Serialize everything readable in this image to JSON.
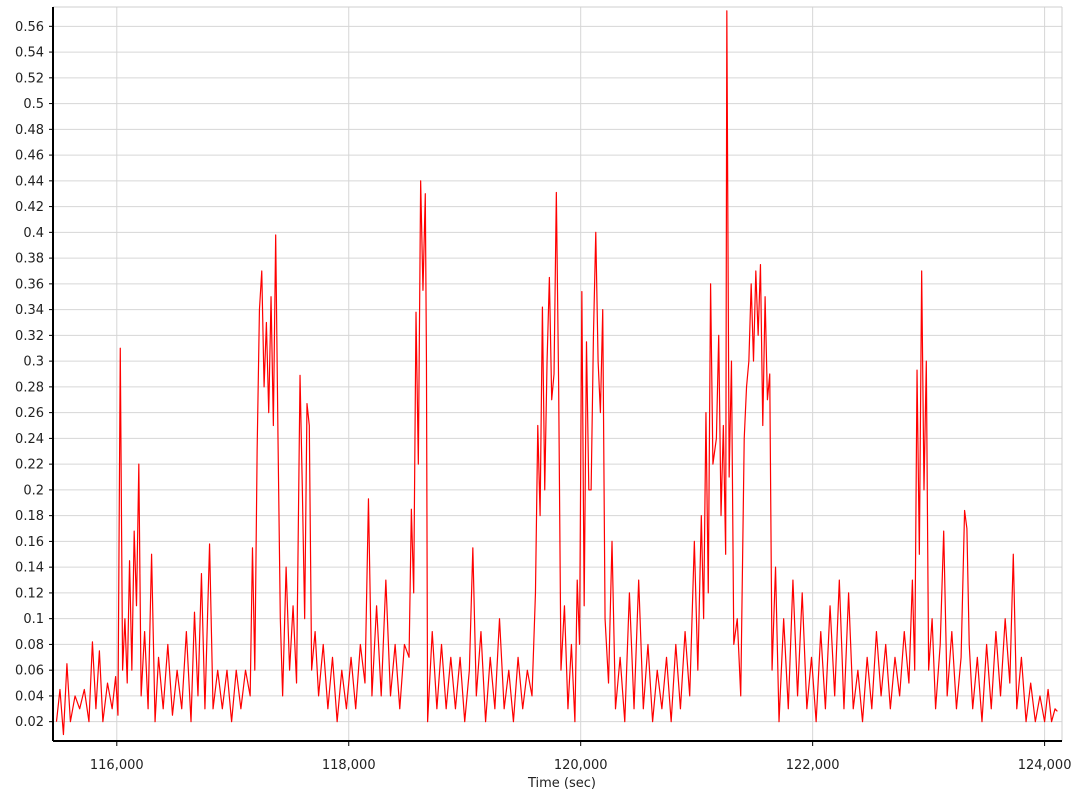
{
  "chart_data": {
    "type": "line",
    "title": "",
    "xlabel": "Time (sec)",
    "ylabel": "",
    "xlim": [
      115450,
      124150
    ],
    "ylim": [
      0.005,
      0.575
    ],
    "grid": true,
    "legend": "none",
    "x_ticks": [
      116000,
      118000,
      120000,
      122000,
      124000
    ],
    "x_tick_labels": [
      "116,000",
      "118,000",
      "120,000",
      "122,000",
      "124,000"
    ],
    "y_ticks": [
      0.02,
      0.04,
      0.06,
      0.08,
      0.1,
      0.12,
      0.14,
      0.16,
      0.18,
      0.2,
      0.22,
      0.24,
      0.26,
      0.28,
      0.3,
      0.32,
      0.34,
      0.36,
      0.38,
      0.4,
      0.42,
      0.44,
      0.46,
      0.48,
      0.5,
      0.52,
      0.54,
      0.56
    ],
    "y_tick_labels": [
      "0.02",
      "0.04",
      "0.06",
      "0.08",
      "0.1",
      "0.12",
      "0.14",
      "0.16",
      "0.18",
      "0.2",
      "0.22",
      "0.24",
      "0.26",
      "0.28",
      "0.3",
      "0.32",
      "0.34",
      "0.36",
      "0.38",
      "0.4",
      "0.42",
      "0.44",
      "0.46",
      "0.48",
      "0.5",
      "0.52",
      "0.54",
      "0.56"
    ],
    "series": [
      {
        "color": "#ff0000",
        "points": [
          [
            115480,
            0.02
          ],
          [
            115510,
            0.045
          ],
          [
            115540,
            0.01
          ],
          [
            115570,
            0.065
          ],
          [
            115600,
            0.02
          ],
          [
            115640,
            0.04
          ],
          [
            115680,
            0.03
          ],
          [
            115720,
            0.045
          ],
          [
            115760,
            0.02
          ],
          [
            115790,
            0.082
          ],
          [
            115820,
            0.03
          ],
          [
            115850,
            0.075
          ],
          [
            115880,
            0.02
          ],
          [
            115920,
            0.05
          ],
          [
            115960,
            0.03
          ],
          [
            115990,
            0.055
          ],
          [
            116010,
            0.025
          ],
          [
            116030,
            0.31
          ],
          [
            116050,
            0.06
          ],
          [
            116070,
            0.1
          ],
          [
            116090,
            0.05
          ],
          [
            116110,
            0.145
          ],
          [
            116130,
            0.06
          ],
          [
            116150,
            0.168
          ],
          [
            116170,
            0.11
          ],
          [
            116190,
            0.22
          ],
          [
            116210,
            0.04
          ],
          [
            116240,
            0.09
          ],
          [
            116270,
            0.03
          ],
          [
            116300,
            0.15
          ],
          [
            116330,
            0.02
          ],
          [
            116360,
            0.07
          ],
          [
            116400,
            0.03
          ],
          [
            116440,
            0.08
          ],
          [
            116480,
            0.025
          ],
          [
            116520,
            0.06
          ],
          [
            116560,
            0.03
          ],
          [
            116600,
            0.09
          ],
          [
            116640,
            0.02
          ],
          [
            116670,
            0.105
          ],
          [
            116700,
            0.04
          ],
          [
            116730,
            0.135
          ],
          [
            116760,
            0.03
          ],
          [
            116800,
            0.158
          ],
          [
            116830,
            0.03
          ],
          [
            116870,
            0.06
          ],
          [
            116910,
            0.03
          ],
          [
            116950,
            0.06
          ],
          [
            116990,
            0.02
          ],
          [
            117030,
            0.06
          ],
          [
            117070,
            0.03
          ],
          [
            117110,
            0.06
          ],
          [
            117150,
            0.04
          ],
          [
            117170,
            0.155
          ],
          [
            117190,
            0.06
          ],
          [
            117210,
            0.23
          ],
          [
            117230,
            0.34
          ],
          [
            117250,
            0.37
          ],
          [
            117270,
            0.28
          ],
          [
            117290,
            0.33
          ],
          [
            117310,
            0.26
          ],
          [
            117330,
            0.35
          ],
          [
            117350,
            0.25
          ],
          [
            117370,
            0.398
          ],
          [
            117390,
            0.24
          ],
          [
            117410,
            0.1
          ],
          [
            117430,
            0.04
          ],
          [
            117460,
            0.14
          ],
          [
            117490,
            0.06
          ],
          [
            117520,
            0.11
          ],
          [
            117550,
            0.05
          ],
          [
            117580,
            0.289
          ],
          [
            117600,
            0.2
          ],
          [
            117620,
            0.1
          ],
          [
            117640,
            0.267
          ],
          [
            117660,
            0.25
          ],
          [
            117680,
            0.06
          ],
          [
            117710,
            0.09
          ],
          [
            117740,
            0.04
          ],
          [
            117780,
            0.08
          ],
          [
            117820,
            0.03
          ],
          [
            117860,
            0.07
          ],
          [
            117900,
            0.02
          ],
          [
            117940,
            0.06
          ],
          [
            117980,
            0.03
          ],
          [
            118020,
            0.07
          ],
          [
            118060,
            0.03
          ],
          [
            118100,
            0.08
          ],
          [
            118140,
            0.05
          ],
          [
            118170,
            0.193
          ],
          [
            118200,
            0.04
          ],
          [
            118240,
            0.11
          ],
          [
            118280,
            0.04
          ],
          [
            118320,
            0.13
          ],
          [
            118360,
            0.04
          ],
          [
            118400,
            0.08
          ],
          [
            118440,
            0.03
          ],
          [
            118480,
            0.08
          ],
          [
            118520,
            0.07
          ],
          [
            118540,
            0.185
          ],
          [
            118560,
            0.12
          ],
          [
            118580,
            0.338
          ],
          [
            118600,
            0.22
          ],
          [
            118620,
            0.44
          ],
          [
            118640,
            0.355
          ],
          [
            118660,
            0.43
          ],
          [
            118670,
            0.3
          ],
          [
            118680,
            0.02
          ],
          [
            118720,
            0.09
          ],
          [
            118760,
            0.03
          ],
          [
            118800,
            0.08
          ],
          [
            118840,
            0.03
          ],
          [
            118880,
            0.07
          ],
          [
            118920,
            0.03
          ],
          [
            118960,
            0.07
          ],
          [
            119000,
            0.02
          ],
          [
            119040,
            0.06
          ],
          [
            119070,
            0.155
          ],
          [
            119100,
            0.04
          ],
          [
            119140,
            0.09
          ],
          [
            119180,
            0.02
          ],
          [
            119220,
            0.07
          ],
          [
            119260,
            0.03
          ],
          [
            119300,
            0.1
          ],
          [
            119340,
            0.03
          ],
          [
            119380,
            0.06
          ],
          [
            119420,
            0.02
          ],
          [
            119460,
            0.07
          ],
          [
            119500,
            0.03
          ],
          [
            119540,
            0.06
          ],
          [
            119580,
            0.04
          ],
          [
            119610,
            0.12
          ],
          [
            119630,
            0.25
          ],
          [
            119650,
            0.18
          ],
          [
            119670,
            0.342
          ],
          [
            119690,
            0.2
          ],
          [
            119710,
            0.3
          ],
          [
            119730,
            0.365
          ],
          [
            119750,
            0.27
          ],
          [
            119770,
            0.29
          ],
          [
            119790,
            0.431
          ],
          [
            119810,
            0.28
          ],
          [
            119830,
            0.06
          ],
          [
            119860,
            0.11
          ],
          [
            119890,
            0.03
          ],
          [
            119920,
            0.08
          ],
          [
            119950,
            0.02
          ],
          [
            119970,
            0.13
          ],
          [
            119990,
            0.08
          ],
          [
            120010,
            0.354
          ],
          [
            120030,
            0.11
          ],
          [
            120050,
            0.315
          ],
          [
            120070,
            0.2
          ],
          [
            120090,
            0.2
          ],
          [
            120110,
            0.32
          ],
          [
            120130,
            0.4
          ],
          [
            120150,
            0.3
          ],
          [
            120170,
            0.26
          ],
          [
            120190,
            0.34
          ],
          [
            120210,
            0.1
          ],
          [
            120240,
            0.05
          ],
          [
            120270,
            0.16
          ],
          [
            120300,
            0.03
          ],
          [
            120340,
            0.07
          ],
          [
            120380,
            0.02
          ],
          [
            120420,
            0.12
          ],
          [
            120460,
            0.03
          ],
          [
            120500,
            0.13
          ],
          [
            120540,
            0.03
          ],
          [
            120580,
            0.08
          ],
          [
            120620,
            0.02
          ],
          [
            120660,
            0.06
          ],
          [
            120700,
            0.03
          ],
          [
            120740,
            0.07
          ],
          [
            120780,
            0.02
          ],
          [
            120820,
            0.08
          ],
          [
            120860,
            0.03
          ],
          [
            120900,
            0.09
          ],
          [
            120940,
            0.04
          ],
          [
            120980,
            0.16
          ],
          [
            121010,
            0.06
          ],
          [
            121040,
            0.18
          ],
          [
            121060,
            0.1
          ],
          [
            121080,
            0.26
          ],
          [
            121100,
            0.12
          ],
          [
            121120,
            0.36
          ],
          [
            121140,
            0.22
          ],
          [
            121170,
            0.24
          ],
          [
            121190,
            0.32
          ],
          [
            121210,
            0.18
          ],
          [
            121230,
            0.25
          ],
          [
            121250,
            0.15
          ],
          [
            121260,
            0.572
          ],
          [
            121280,
            0.21
          ],
          [
            121300,
            0.3
          ],
          [
            121320,
            0.08
          ],
          [
            121350,
            0.1
          ],
          [
            121380,
            0.04
          ],
          [
            121410,
            0.24
          ],
          [
            121430,
            0.28
          ],
          [
            121450,
            0.3
          ],
          [
            121470,
            0.36
          ],
          [
            121490,
            0.3
          ],
          [
            121510,
            0.37
          ],
          [
            121530,
            0.32
          ],
          [
            121550,
            0.375
          ],
          [
            121570,
            0.25
          ],
          [
            121590,
            0.35
          ],
          [
            121610,
            0.27
          ],
          [
            121630,
            0.29
          ],
          [
            121650,
            0.06
          ],
          [
            121680,
            0.14
          ],
          [
            121710,
            0.02
          ],
          [
            121750,
            0.1
          ],
          [
            121790,
            0.03
          ],
          [
            121830,
            0.13
          ],
          [
            121870,
            0.04
          ],
          [
            121910,
            0.12
          ],
          [
            121950,
            0.03
          ],
          [
            121990,
            0.07
          ],
          [
            122030,
            0.02
          ],
          [
            122070,
            0.09
          ],
          [
            122110,
            0.03
          ],
          [
            122150,
            0.11
          ],
          [
            122190,
            0.04
          ],
          [
            122230,
            0.13
          ],
          [
            122270,
            0.03
          ],
          [
            122310,
            0.12
          ],
          [
            122350,
            0.03
          ],
          [
            122390,
            0.06
          ],
          [
            122430,
            0.02
          ],
          [
            122470,
            0.07
          ],
          [
            122510,
            0.03
          ],
          [
            122550,
            0.09
          ],
          [
            122590,
            0.04
          ],
          [
            122630,
            0.08
          ],
          [
            122670,
            0.03
          ],
          [
            122710,
            0.07
          ],
          [
            122750,
            0.04
          ],
          [
            122790,
            0.09
          ],
          [
            122830,
            0.05
          ],
          [
            122860,
            0.13
          ],
          [
            122880,
            0.06
          ],
          [
            122900,
            0.293
          ],
          [
            122920,
            0.15
          ],
          [
            122940,
            0.37
          ],
          [
            122960,
            0.2
          ],
          [
            122980,
            0.3
          ],
          [
            123000,
            0.06
          ],
          [
            123030,
            0.1
          ],
          [
            123060,
            0.03
          ],
          [
            123100,
            0.08
          ],
          [
            123130,
            0.168
          ],
          [
            123160,
            0.04
          ],
          [
            123200,
            0.09
          ],
          [
            123240,
            0.03
          ],
          [
            123280,
            0.07
          ],
          [
            123310,
            0.184
          ],
          [
            123330,
            0.17
          ],
          [
            123350,
            0.08
          ],
          [
            123380,
            0.03
          ],
          [
            123420,
            0.07
          ],
          [
            123460,
            0.02
          ],
          [
            123500,
            0.08
          ],
          [
            123540,
            0.03
          ],
          [
            123580,
            0.09
          ],
          [
            123620,
            0.04
          ],
          [
            123660,
            0.1
          ],
          [
            123700,
            0.05
          ],
          [
            123730,
            0.15
          ],
          [
            123760,
            0.03
          ],
          [
            123800,
            0.07
          ],
          [
            123840,
            0.02
          ],
          [
            123880,
            0.05
          ],
          [
            123920,
            0.02
          ],
          [
            123960,
            0.04
          ],
          [
            124000,
            0.02
          ],
          [
            124030,
            0.045
          ],
          [
            124060,
            0.02
          ],
          [
            124090,
            0.03
          ],
          [
            124110,
            0.028
          ]
        ]
      }
    ]
  }
}
